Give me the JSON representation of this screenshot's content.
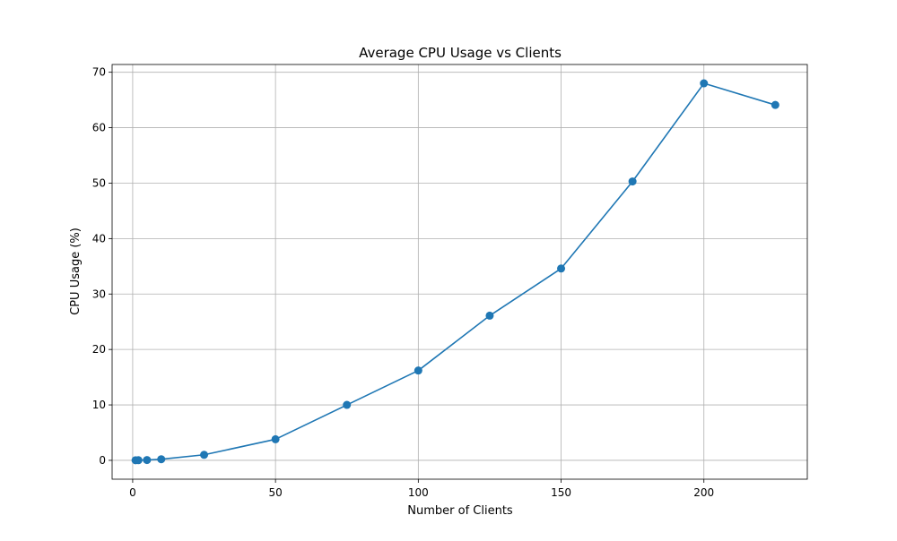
{
  "chart_data": {
    "type": "line",
    "title": "Average CPU Usage vs Clients",
    "xlabel": "Number of Clients",
    "ylabel": "CPU Usage (%)",
    "xlim": [
      -7.2,
      236.2
    ],
    "ylim": [
      -3.4,
      71.4
    ],
    "xticks": [
      0,
      50,
      100,
      150,
      200
    ],
    "yticks": [
      0,
      10,
      20,
      30,
      40,
      50,
      60,
      70
    ],
    "grid": true,
    "series": [
      {
        "color": "#1f77b4",
        "marker": "circle",
        "x": [
          1,
          2,
          5,
          10,
          25,
          50,
          75,
          100,
          125,
          150,
          175,
          200,
          225
        ],
        "y": [
          0.02,
          0.03,
          0.06,
          0.2,
          1.0,
          3.8,
          10.0,
          16.2,
          26.1,
          34.6,
          50.3,
          68.0,
          64.1
        ]
      }
    ]
  }
}
